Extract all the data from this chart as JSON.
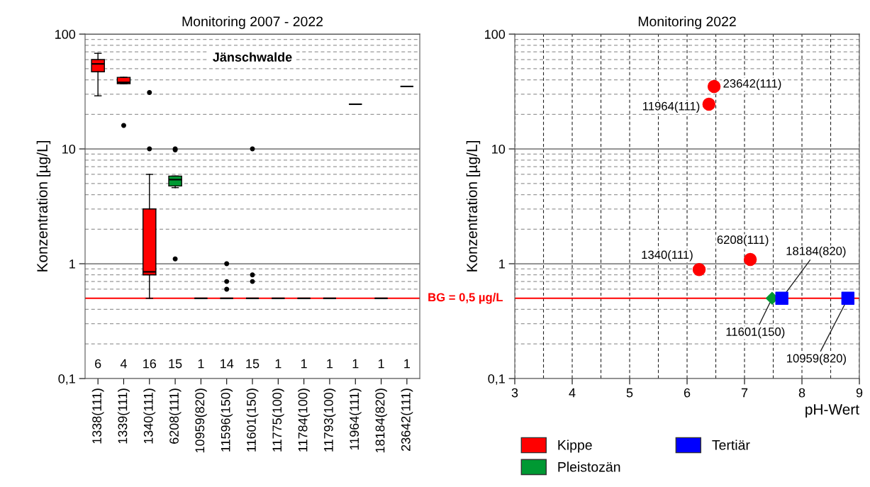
{
  "chart_data": [
    {
      "type": "box",
      "title": "Monitoring 2007 - 2022",
      "ylabel": "Konzentration [µg/L]",
      "categories": [
        "1338(111)",
        "1339(111)",
        "1340(111)",
        "6208(111)",
        "10959(820)",
        "11596(150)",
        "11601(150)",
        "11775(100)",
        "11784(100)",
        "11793(100)",
        "11964(111)",
        "18184(820)",
        "23642(111)"
      ],
      "colors": [
        "#ff0000",
        "#ff0000",
        "#ff0000",
        "#009933",
        "#000000",
        "#000000",
        "#000000",
        "#000000",
        "#000000",
        "#000000",
        "#000000",
        "#000000",
        "#000000"
      ],
      "boxes": [
        {
          "low": 29,
          "q1": 47,
          "median": 55,
          "q3": 60,
          "high": 68
        },
        {
          "low": 37,
          "q1": 37,
          "median": 38,
          "q3": 42,
          "high": 42,
          "outliers": [
            16
          ]
        },
        {
          "low": 0.5,
          "q1": 0.8,
          "median": 0.85,
          "q3": 3,
          "high": 6,
          "outliers": [
            31,
            10
          ]
        },
        {
          "low": 4.6,
          "q1": 4.75,
          "median": 5.4,
          "q3": 5.8,
          "high": 5.8,
          "outliers": [
            10,
            9.8,
            1.1
          ]
        },
        {
          "low": 0.5,
          "q1": 0.5,
          "median": 0.5,
          "q3": 0.5,
          "high": 0.5
        },
        {
          "low": 0.5,
          "q1": 0.5,
          "median": 0.5,
          "q3": 0.5,
          "high": 0.5,
          "outliers": [
            1,
            0.7,
            0.6
          ]
        },
        {
          "low": 0.5,
          "q1": 0.5,
          "median": 0.5,
          "q3": 0.5,
          "high": 0.5,
          "outliers": [
            10,
            0.8,
            0.7
          ]
        },
        {
          "low": 0.5,
          "q1": 0.5,
          "median": 0.5,
          "q3": 0.5,
          "high": 0.5
        },
        {
          "low": 0.5,
          "q1": 0.5,
          "median": 0.5,
          "q3": 0.5,
          "high": 0.5
        },
        {
          "low": 0.5,
          "q1": 0.5,
          "median": 0.5,
          "q3": 0.5,
          "high": 0.5
        },
        {
          "low": 24.5,
          "q1": 24.5,
          "median": 24.5,
          "q3": 24.5,
          "high": 24.5
        },
        {
          "low": 0.5,
          "q1": 0.5,
          "median": 0.5,
          "q3": 0.5,
          "high": 0.5
        },
        {
          "low": 35,
          "q1": 35,
          "median": 35,
          "q3": 35,
          "high": 35
        }
      ],
      "log": "y",
      "ylim": [
        0.1,
        100
      ],
      "yticks": [
        {
          "value": 0.1,
          "label": "0,1"
        },
        {
          "value": 0.2,
          "label": null
        },
        {
          "value": 0.3,
          "label": null
        },
        {
          "value": 0.4,
          "label": null
        },
        {
          "value": 0.6,
          "label": null
        },
        {
          "value": 0.7,
          "label": null
        },
        {
          "value": 0.8,
          "label": null
        },
        {
          "value": 0.9,
          "label": null
        },
        1,
        {
          "value": 2,
          "label": null
        },
        {
          "value": 3,
          "label": null
        },
        {
          "value": 4,
          "label": null
        },
        {
          "value": 5,
          "label": null
        },
        {
          "value": 6,
          "label": null
        },
        {
          "value": 7,
          "label": null
        },
        {
          "value": 8,
          "label": null
        },
        {
          "value": 9,
          "label": null
        },
        10,
        {
          "value": 20,
          "label": null
        },
        {
          "value": 30,
          "label": null
        },
        {
          "value": 40,
          "label": null
        },
        {
          "value": 50,
          "label": null
        },
        {
          "value": 60,
          "label": null
        },
        {
          "value": 70,
          "label": null
        },
        {
          "value": 80,
          "label": null
        },
        {
          "value": 90,
          "label": null
        },
        100
      ],
      "grid": "y",
      "ref_lines": [
        {
          "axis": "y",
          "value": 0.5,
          "label": "BG = 0,5 µg/L",
          "color": "#ff0000"
        }
      ],
      "annotations": [
        "Jänschwalde",
        "6",
        "4",
        "16",
        "15",
        "1",
        "14",
        "15",
        "1",
        "1",
        "1",
        "1",
        "1",
        "1"
      ]
    },
    {
      "type": "scatter",
      "title": "Monitoring 2022",
      "ylabel": "Konzentration [µg/L]",
      "xlabel": "pH-Wert",
      "series": [
        {
          "name": "Kippe",
          "color": "#ff0000",
          "marker": "circle",
          "x": [
            6.47,
            6.38,
            6.21,
            7.1
          ],
          "values": [
            35,
            24.5,
            0.89,
            1.09
          ]
        },
        {
          "name": "Pleistozän",
          "color": "#009933",
          "marker": "diamond",
          "x": [
            7.48
          ],
          "values": [
            0.5
          ]
        },
        {
          "name": "Tertiär",
          "color": "#0000ff",
          "marker": "square",
          "x": [
            7.65,
            8.8
          ],
          "values": [
            0.5,
            0.5
          ]
        }
      ],
      "log": "y",
      "xlim": [
        3,
        9
      ],
      "ylim": [
        0.1,
        100
      ],
      "xticks": [
        3,
        {
          "value": 3.5,
          "label": null
        },
        4,
        {
          "value": 4.5,
          "label": null
        },
        5,
        {
          "value": 5.5,
          "label": null
        },
        6,
        {
          "value": 6.5,
          "label": null
        },
        7,
        {
          "value": 7.5,
          "label": null
        },
        8,
        {
          "value": 8.5,
          "label": null
        },
        9
      ],
      "yticks": [
        {
          "value": 0.1,
          "label": "0,1"
        },
        {
          "value": 0.2,
          "label": null
        },
        {
          "value": 0.3,
          "label": null
        },
        {
          "value": 0.4,
          "label": null
        },
        {
          "value": 0.6,
          "label": null
        },
        {
          "value": 0.7,
          "label": null
        },
        {
          "value": 0.8,
          "label": null
        },
        {
          "value": 0.9,
          "label": null
        },
        1,
        {
          "value": 2,
          "label": null
        },
        {
          "value": 3,
          "label": null
        },
        {
          "value": 4,
          "label": null
        },
        {
          "value": 5,
          "label": null
        },
        {
          "value": 6,
          "label": null
        },
        {
          "value": 7,
          "label": null
        },
        {
          "value": 8,
          "label": null
        },
        {
          "value": 9,
          "label": null
        },
        10,
        {
          "value": 20,
          "label": null
        },
        {
          "value": 30,
          "label": null
        },
        {
          "value": 40,
          "label": null
        },
        {
          "value": 50,
          "label": null
        },
        {
          "value": 60,
          "label": null
        },
        {
          "value": 70,
          "label": null
        },
        {
          "value": 80,
          "label": null
        },
        {
          "value": 90,
          "label": null
        },
        100
      ],
      "grid": true,
      "legend": "bottom",
      "ref_lines": [
        {
          "axis": "y",
          "value": 0.5,
          "color": "#ff0000"
        }
      ],
      "annotations": [
        {
          "text": "23642(111)",
          "x": 6.47,
          "y": 35
        },
        {
          "text": "11964(111)",
          "x": 6.38,
          "y": 24.5
        },
        {
          "text": "1340(111)",
          "x": 6.21,
          "y": 0.89
        },
        {
          "text": "6208(111)",
          "x": 7.1,
          "y": 1.09
        },
        {
          "text": "18184(820)",
          "x": 7.65,
          "y": 0.5
        },
        {
          "text": "11601(150)",
          "x": 7.48,
          "y": 0.5
        },
        {
          "text": "10959(820)",
          "x": 8.8,
          "y": 0.5
        }
      ]
    }
  ]
}
